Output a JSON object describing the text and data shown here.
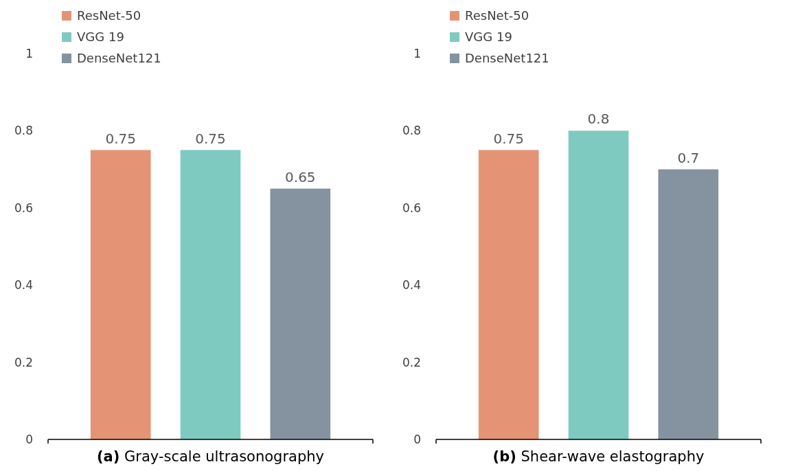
{
  "chart_data": [
    {
      "type": "bar",
      "xlabel": "(a) Gray-scale ultrasonography",
      "categories": [
        null
      ],
      "series": [
        {
          "name": "ResNet-50",
          "color": "#e49475",
          "values": [
            0.75
          ]
        },
        {
          "name": "VGG 19",
          "color": "#7fcac0",
          "values": [
            0.75
          ]
        },
        {
          "name": "DenseNet121",
          "color": "#84939f",
          "values": [
            0.65
          ]
        }
      ],
      "ylim": [
        0,
        1
      ],
      "yticks": [
        0,
        0.2,
        0.4,
        0.6,
        0.8,
        1
      ],
      "data_labels": true,
      "legend": "top left",
      "grid": false
    },
    {
      "type": "bar",
      "xlabel": "(b) Shear-wave elastography",
      "categories": [
        null
      ],
      "series": [
        {
          "name": "ResNet-50",
          "color": "#e49475",
          "values": [
            0.75
          ]
        },
        {
          "name": "VGG 19",
          "color": "#7fcac0",
          "values": [
            0.8
          ]
        },
        {
          "name": "DenseNet121",
          "color": "#84939f",
          "values": [
            0.7
          ]
        }
      ],
      "ylim": [
        0,
        1
      ],
      "yticks": [
        0,
        0.2,
        0.4,
        0.6,
        0.8,
        1
      ],
      "data_labels": true,
      "legend": "top left",
      "grid": false
    }
  ]
}
